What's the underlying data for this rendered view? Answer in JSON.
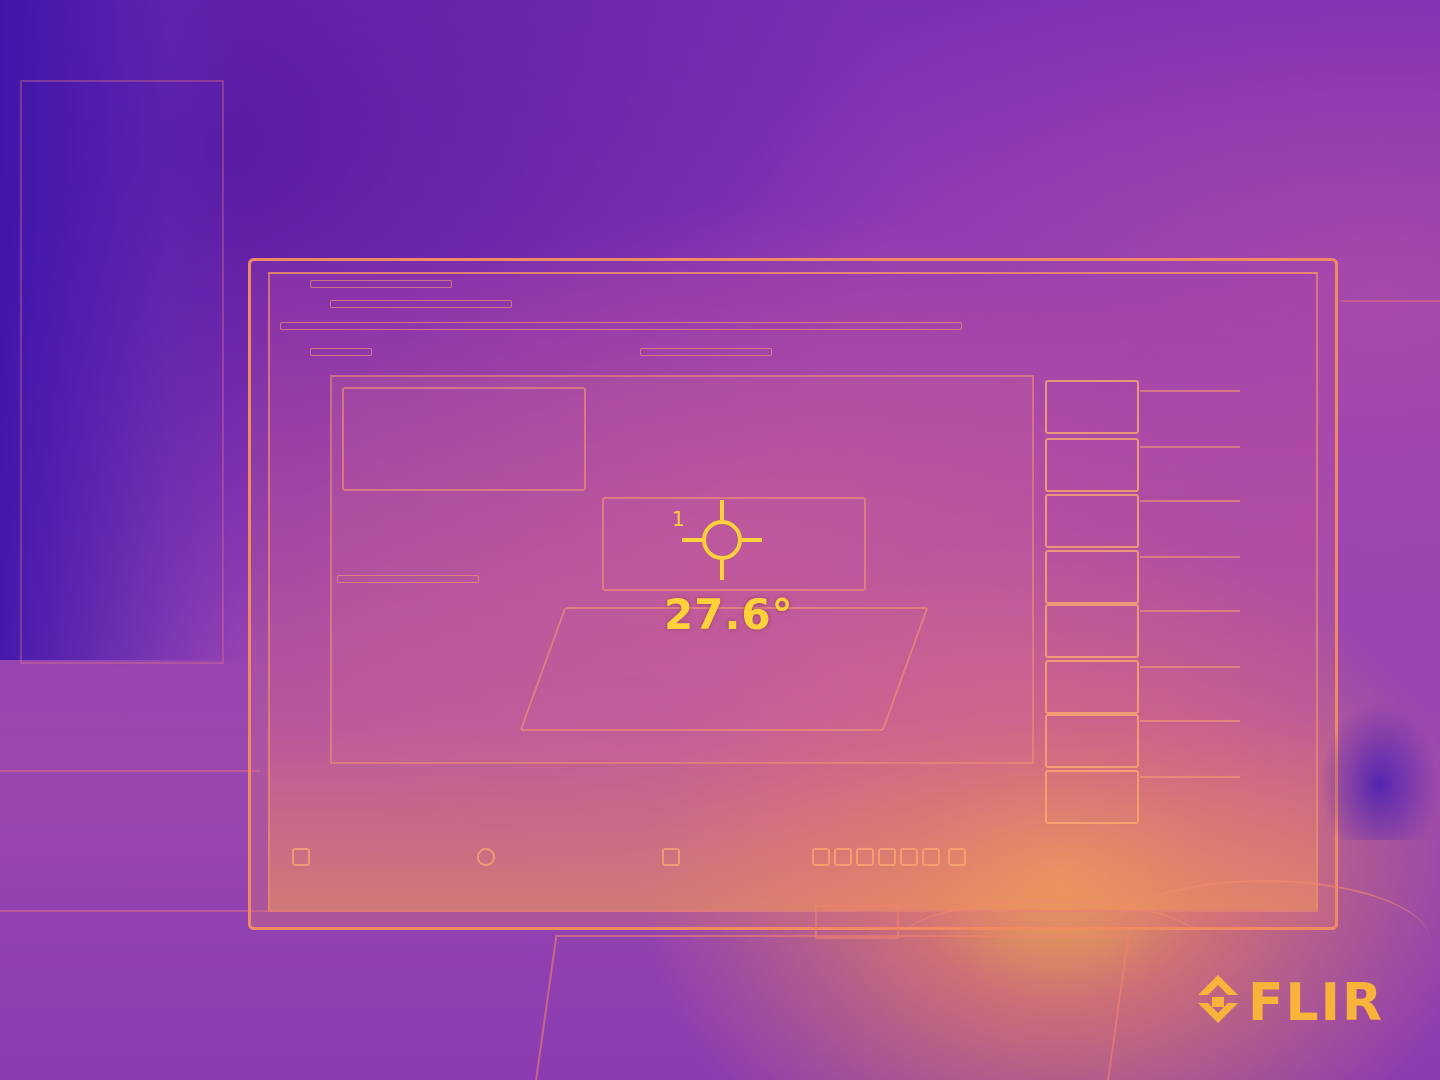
{
  "overlay": {
    "spot_index": "1",
    "temperature": "27.6°"
  },
  "brand": {
    "logo_text": "FLIR"
  },
  "colors": {
    "readout": "#ffd23a",
    "logo": "#f7b33a",
    "palette_cold": "#5a1fa8",
    "palette_hot": "#ffb23a"
  },
  "icons": {
    "reticle": "crosshair-reticle-icon",
    "logo_mark": "flir-logo-mark-icon"
  }
}
